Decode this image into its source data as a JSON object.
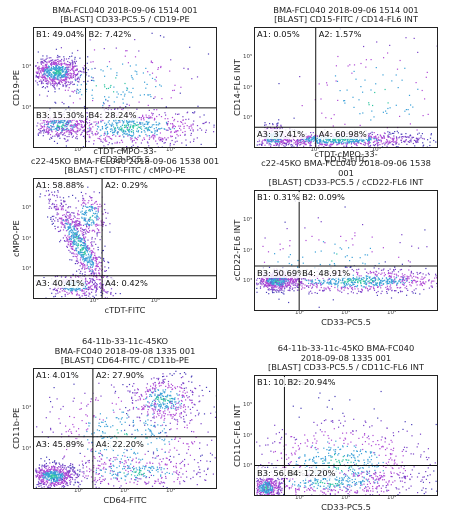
{
  "chart_data": [
    {
      "type": "scatter",
      "title_lines": [
        "BMA-FCL040 2018-09-06 1514 001",
        "[BLAST] CD33-PC5.5 / CD19-PE"
      ],
      "xlabel": "CD33-PC5.5",
      "ylabel": "CD19-PE",
      "x_ticks": [
        "10²",
        "10³",
        "10⁴"
      ],
      "y_ticks": [
        "10³",
        "10⁴"
      ],
      "quadrants": {
        "B1": "49.04%",
        "B2": "7.42%",
        "B3": "15.30%",
        "B4": "28.24%"
      },
      "gate": {
        "x": 0.28,
        "y": 0.66
      }
    },
    {
      "type": "scatter",
      "title_lines": [
        "BMA-FCL040 2018-09-06 1514 001",
        "[BLAST] CD15-FITC / CD14-FL6 INT"
      ],
      "xlabel": "CD15-FITC",
      "ylabel": "CD14-FL6 INT",
      "x_ticks": [
        "10²",
        "10³"
      ],
      "y_ticks": [
        "10³",
        "10⁴",
        "10⁵"
      ],
      "quadrants": {
        "A1": "0.05%",
        "A2": "1.57%",
        "A3": "37.41%",
        "A4": "60.98%"
      },
      "gate": {
        "x": 0.33,
        "y": 0.82
      }
    },
    {
      "type": "scatter",
      "title_lines": [
        "cTDT-cMPO-33-",
        "c22-45KO BMA-FCL040 2018-09-06 1538 001",
        "[BLAST] cTDT-FITC / cMPO-PE"
      ],
      "xlabel": "cTDT-FITC",
      "ylabel": "cMPO-PE",
      "x_ticks": [
        "10³",
        "10⁴"
      ],
      "y_ticks": [
        "10³",
        "10⁴",
        "10⁵"
      ],
      "quadrants": {
        "A1": "58.88%",
        "A2": "0.29%",
        "A3": "40.41%",
        "A4": "0.42%"
      },
      "gate": {
        "x": 0.37,
        "y": 0.8
      }
    },
    {
      "type": "scatter",
      "title_lines": [
        "cTDT-cMPO-33-",
        "c22-45KO BMA-FCL040 2018-09-06 1538",
        "001",
        "[BLAST] CD33-PC5.5 / cCD22-FL6 INT"
      ],
      "xlabel": "CD33-PC5.5",
      "ylabel": "cCD22-FL6 INT",
      "x_ticks": [
        "10²",
        "10³",
        "10⁴"
      ],
      "y_ticks": [
        "10³",
        "10⁴",
        "10⁵"
      ],
      "quadrants": {
        "B1": "0.31%",
        "B2": "0.09%",
        "B3": "50.69%",
        "B4": "48.91%"
      },
      "gate": {
        "x": 0.24,
        "y": 0.62
      }
    },
    {
      "type": "scatter",
      "title_lines": [
        "64-11b-33-11c-45KO",
        "BMA-FC040 2018-09-08 1335 001",
        "[BLAST] CD64-FITC / CD11b-PE"
      ],
      "xlabel": "CD64-FITC",
      "ylabel": "CD11b-PE",
      "x_ticks": [
        "10²",
        "10³",
        "10⁴"
      ],
      "y_ticks": [
        "10³",
        "10⁴"
      ],
      "quadrants": {
        "A1": "4.01%",
        "A2": "27.90%",
        "A3": "45.89%",
        "A4": "22.20%"
      },
      "gate": {
        "x": 0.32,
        "y": 0.56
      }
    },
    {
      "type": "scatter",
      "title_lines": [
        "64-11b-33-11c-45KO BMA-FC040",
        "2018-09-08 1335 001",
        "[BLAST] CD33-PC5.5 / CD11C-FL6 INT"
      ],
      "xlabel": "CD33-PC5.5",
      "ylabel": "CD11C-FL6 INT",
      "x_ticks": [
        "10²",
        "10³",
        "10⁴"
      ],
      "y_ticks": [
        "10³",
        "10⁴",
        "10⁵"
      ],
      "quadrants": {
        "B1": "10.20%",
        "B2": "20.94%",
        "B3": "56.66%",
        "B4": "12.20%"
      },
      "gate": {
        "x": 0.16,
        "y": 0.74
      }
    }
  ]
}
